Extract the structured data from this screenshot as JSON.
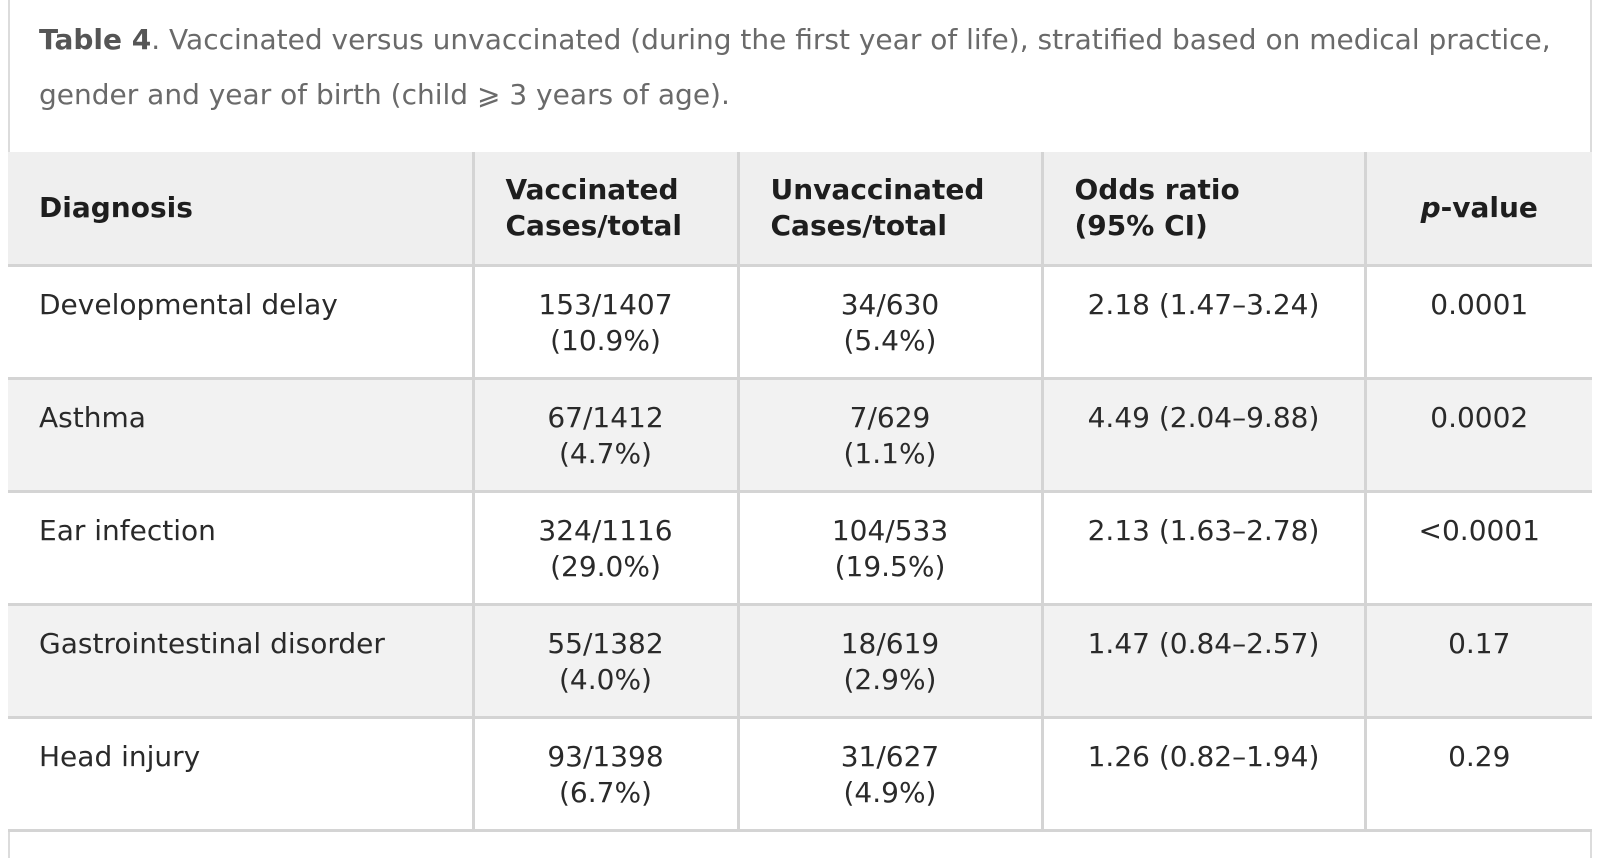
{
  "caption": {
    "label": "Table 4",
    "text": ". Vaccinated versus unvaccinated (during the first year of life), stratified based on medical practice, gender and year of birth (child ⩾ 3 years of age)."
  },
  "table": {
    "headers": {
      "diagnosis": "Diagnosis",
      "vaccinated": [
        "Vaccinated",
        "Cases/total"
      ],
      "unvaccinated": [
        "Unvaccinated",
        "Cases/total"
      ],
      "odds_ratio": [
        "Odds ratio",
        "(95% CI)"
      ],
      "p_value_italic": "p",
      "p_value_rest": "-value"
    },
    "rows": [
      {
        "diagnosis": "Developmental delay",
        "vaccinated": [
          "153/1407",
          "(10.9%)"
        ],
        "unvaccinated": [
          "34/630",
          "(5.4%)"
        ],
        "odds_ratio": "2.18 (1.47–3.24)",
        "p_value": "0.0001"
      },
      {
        "diagnosis": "Asthma",
        "vaccinated": [
          "67/1412",
          "(4.7%)"
        ],
        "unvaccinated": [
          "7/629",
          "(1.1%)"
        ],
        "odds_ratio": "4.49 (2.04–9.88)",
        "p_value": "0.0002"
      },
      {
        "diagnosis": "Ear infection",
        "vaccinated": [
          "324/1116",
          "(29.0%)"
        ],
        "unvaccinated": [
          "104/533",
          "(19.5%)"
        ],
        "odds_ratio": "2.13 (1.63–2.78)",
        "p_value": "<0.0001"
      },
      {
        "diagnosis": "Gastrointestinal disorder",
        "vaccinated": [
          "55/1382",
          "(4.0%)"
        ],
        "unvaccinated": [
          "18/619",
          "(2.9%)"
        ],
        "odds_ratio": "1.47 (0.84–2.57)",
        "p_value": "0.17"
      },
      {
        "diagnosis": "Head injury",
        "vaccinated": [
          "93/1398",
          "(6.7%)"
        ],
        "unvaccinated": [
          "31/627",
          "(4.9%)"
        ],
        "odds_ratio": "1.26 (0.82–1.94)",
        "p_value": "0.29"
      }
    ]
  }
}
